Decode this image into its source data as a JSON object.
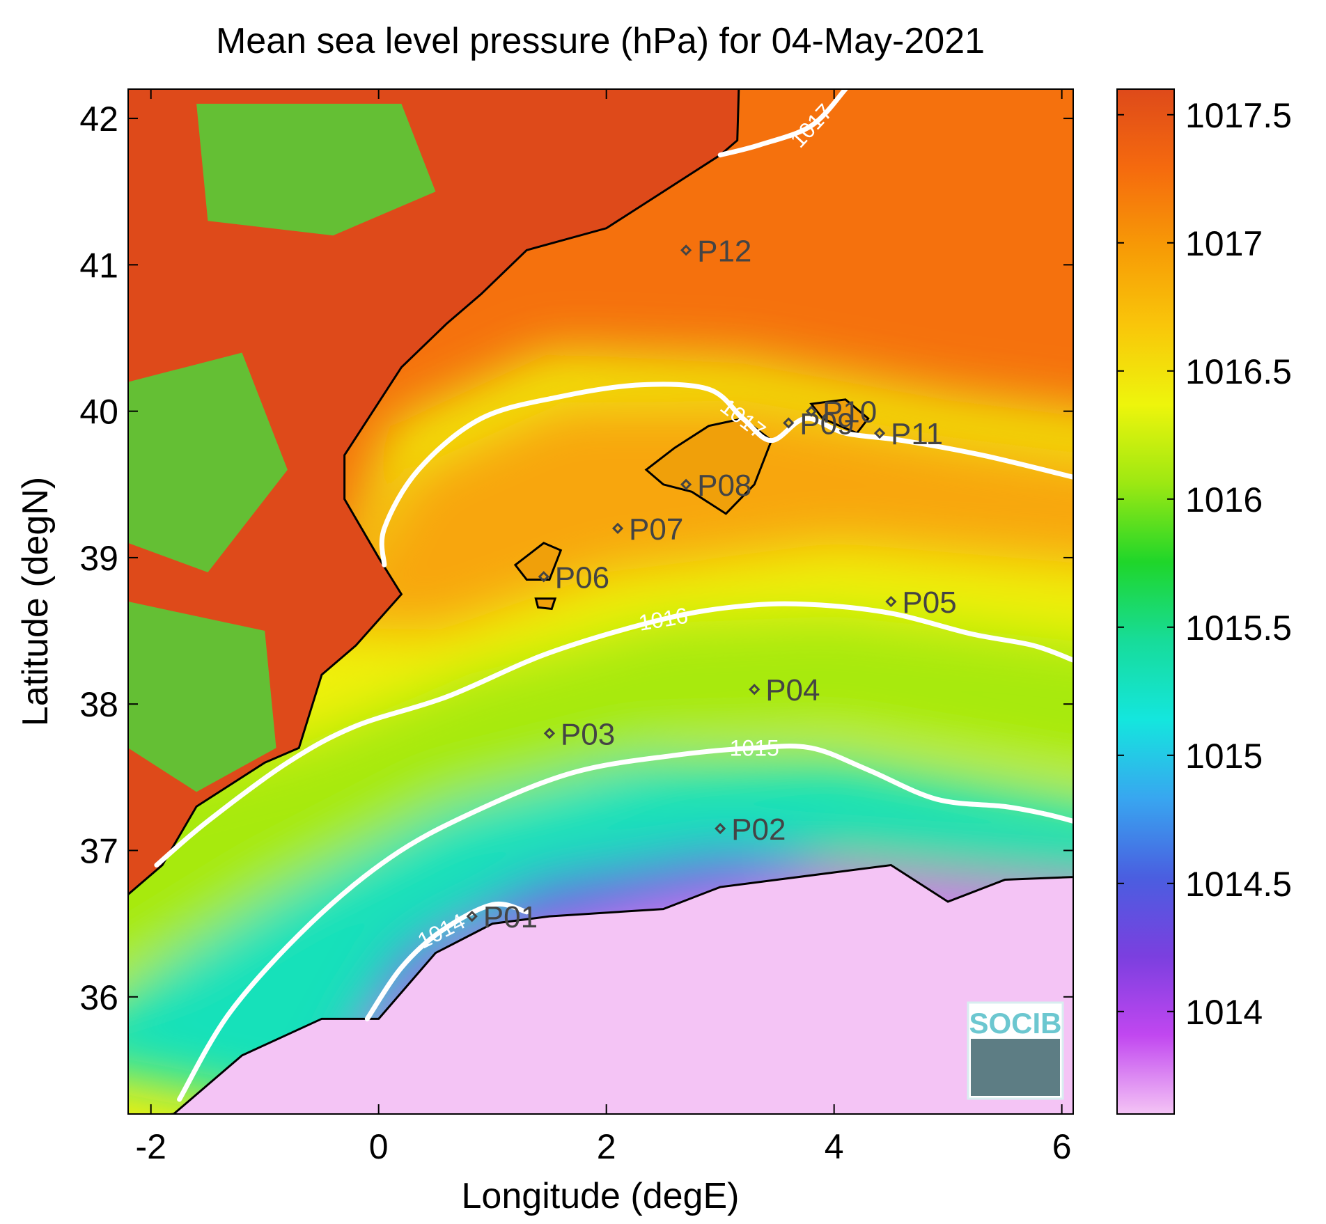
{
  "chart_data": {
    "type": "heatmap",
    "title": "Mean sea level pressure (hPa) for 04-May-2021",
    "xlabel": "Longitude (degE)",
    "ylabel": "Latitude (degN)",
    "xlim": [
      -2.2,
      6.1
    ],
    "ylim": [
      35.2,
      42.2
    ],
    "xticks": [
      -2,
      0,
      2,
      4,
      6
    ],
    "xtick_labels": [
      "-2",
      "0",
      "2",
      "4",
      "6"
    ],
    "yticks": [
      36,
      37,
      38,
      39,
      40,
      41,
      42
    ],
    "ytick_labels": [
      "36",
      "37",
      "38",
      "39",
      "40",
      "41",
      "42"
    ],
    "grid": false,
    "colorbar": {
      "range": [
        1013.6,
        1017.6
      ],
      "ticks": [
        1014,
        1014.5,
        1015,
        1015.5,
        1016,
        1016.5,
        1017,
        1017.5
      ],
      "tick_labels": [
        "1014",
        "1014.5",
        "1015",
        "1015.5",
        "1016",
        "1016.5",
        "1017",
        "1017.5"
      ],
      "colormap": [
        "#f4c4f5",
        "#c147f0",
        "#7b3fdf",
        "#4a5ee0",
        "#38a6f0",
        "#14e6de",
        "#17dc9a",
        "#1fd62a",
        "#9de812",
        "#eef50c",
        "#f9c60a",
        "#f79a06",
        "#f56a0e",
        "#de4a1a"
      ]
    },
    "field_description": {
      "sea_pressure_at_lat_35_5": 1013.9,
      "sea_pressure_at_lat_37_5": 1015.1,
      "sea_pressure_at_lat_39_5": 1016.8,
      "sea_pressure_at_lat_41_5": 1017.3
    },
    "contours": [
      {
        "level": 1014,
        "label": "1014",
        "points": [
          [
            -0.1,
            35.85
          ],
          [
            0.2,
            36.2
          ],
          [
            0.55,
            36.45
          ],
          [
            1.0,
            36.63
          ],
          [
            1.3,
            36.58
          ]
        ]
      },
      {
        "level": 1015,
        "label": "1015",
        "points": [
          [
            -1.75,
            35.3
          ],
          [
            -1.3,
            35.9
          ],
          [
            -0.6,
            36.5
          ],
          [
            0.1,
            36.95
          ],
          [
            0.8,
            37.25
          ],
          [
            1.7,
            37.53
          ],
          [
            2.6,
            37.65
          ],
          [
            3.3,
            37.7
          ],
          [
            3.8,
            37.7
          ],
          [
            4.3,
            37.55
          ],
          [
            4.9,
            37.35
          ],
          [
            5.5,
            37.3
          ],
          [
            5.85,
            37.25
          ],
          [
            6.1,
            37.2
          ]
        ]
      },
      {
        "level": 1016,
        "label": "1016",
        "points": [
          [
            -1.95,
            36.9
          ],
          [
            -1.5,
            37.2
          ],
          [
            -0.8,
            37.6
          ],
          [
            -0.2,
            37.85
          ],
          [
            0.6,
            38.05
          ],
          [
            1.5,
            38.35
          ],
          [
            2.5,
            38.58
          ],
          [
            3.2,
            38.67
          ],
          [
            3.8,
            38.68
          ],
          [
            4.5,
            38.62
          ],
          [
            5.2,
            38.48
          ],
          [
            5.75,
            38.4
          ],
          [
            6.1,
            38.3
          ]
        ]
      },
      {
        "level": 1017,
        "label": "1017",
        "points": [
          [
            0.05,
            38.95
          ],
          [
            0.05,
            39.2
          ],
          [
            0.35,
            39.6
          ],
          [
            0.9,
            39.95
          ],
          [
            1.6,
            40.1
          ],
          [
            2.3,
            40.18
          ],
          [
            2.9,
            40.15
          ],
          [
            3.2,
            39.95
          ],
          [
            3.45,
            39.8
          ],
          [
            3.75,
            39.95
          ],
          [
            4.1,
            39.85
          ],
          [
            4.6,
            39.8
          ],
          [
            5.3,
            39.7
          ],
          [
            6.1,
            39.55
          ]
        ]
      },
      {
        "level": 1017,
        "label": "1017",
        "points": [
          [
            3.0,
            41.75
          ],
          [
            3.35,
            41.82
          ],
          [
            3.8,
            41.95
          ],
          [
            4.1,
            42.2
          ]
        ]
      }
    ],
    "stations": [
      {
        "name": "P01",
        "lon": 0.82,
        "lat": 36.55
      },
      {
        "name": "P02",
        "lon": 3.0,
        "lat": 37.15
      },
      {
        "name": "P03",
        "lon": 1.5,
        "lat": 37.8
      },
      {
        "name": "P04",
        "lon": 3.3,
        "lat": 38.1
      },
      {
        "name": "P05",
        "lon": 4.5,
        "lat": 38.7
      },
      {
        "name": "P06",
        "lon": 1.45,
        "lat": 38.87
      },
      {
        "name": "P07",
        "lon": 2.1,
        "lat": 39.2
      },
      {
        "name": "P08",
        "lon": 2.7,
        "lat": 39.5
      },
      {
        "name": "P09",
        "lon": 3.6,
        "lat": 39.92
      },
      {
        "name": "P10",
        "lon": 3.8,
        "lat": 40.0
      },
      {
        "name": "P11",
        "lon": 4.4,
        "lat": 39.85
      },
      {
        "name": "P12",
        "lon": 2.7,
        "lat": 41.1
      }
    ],
    "logo_text": "SOCIB"
  }
}
